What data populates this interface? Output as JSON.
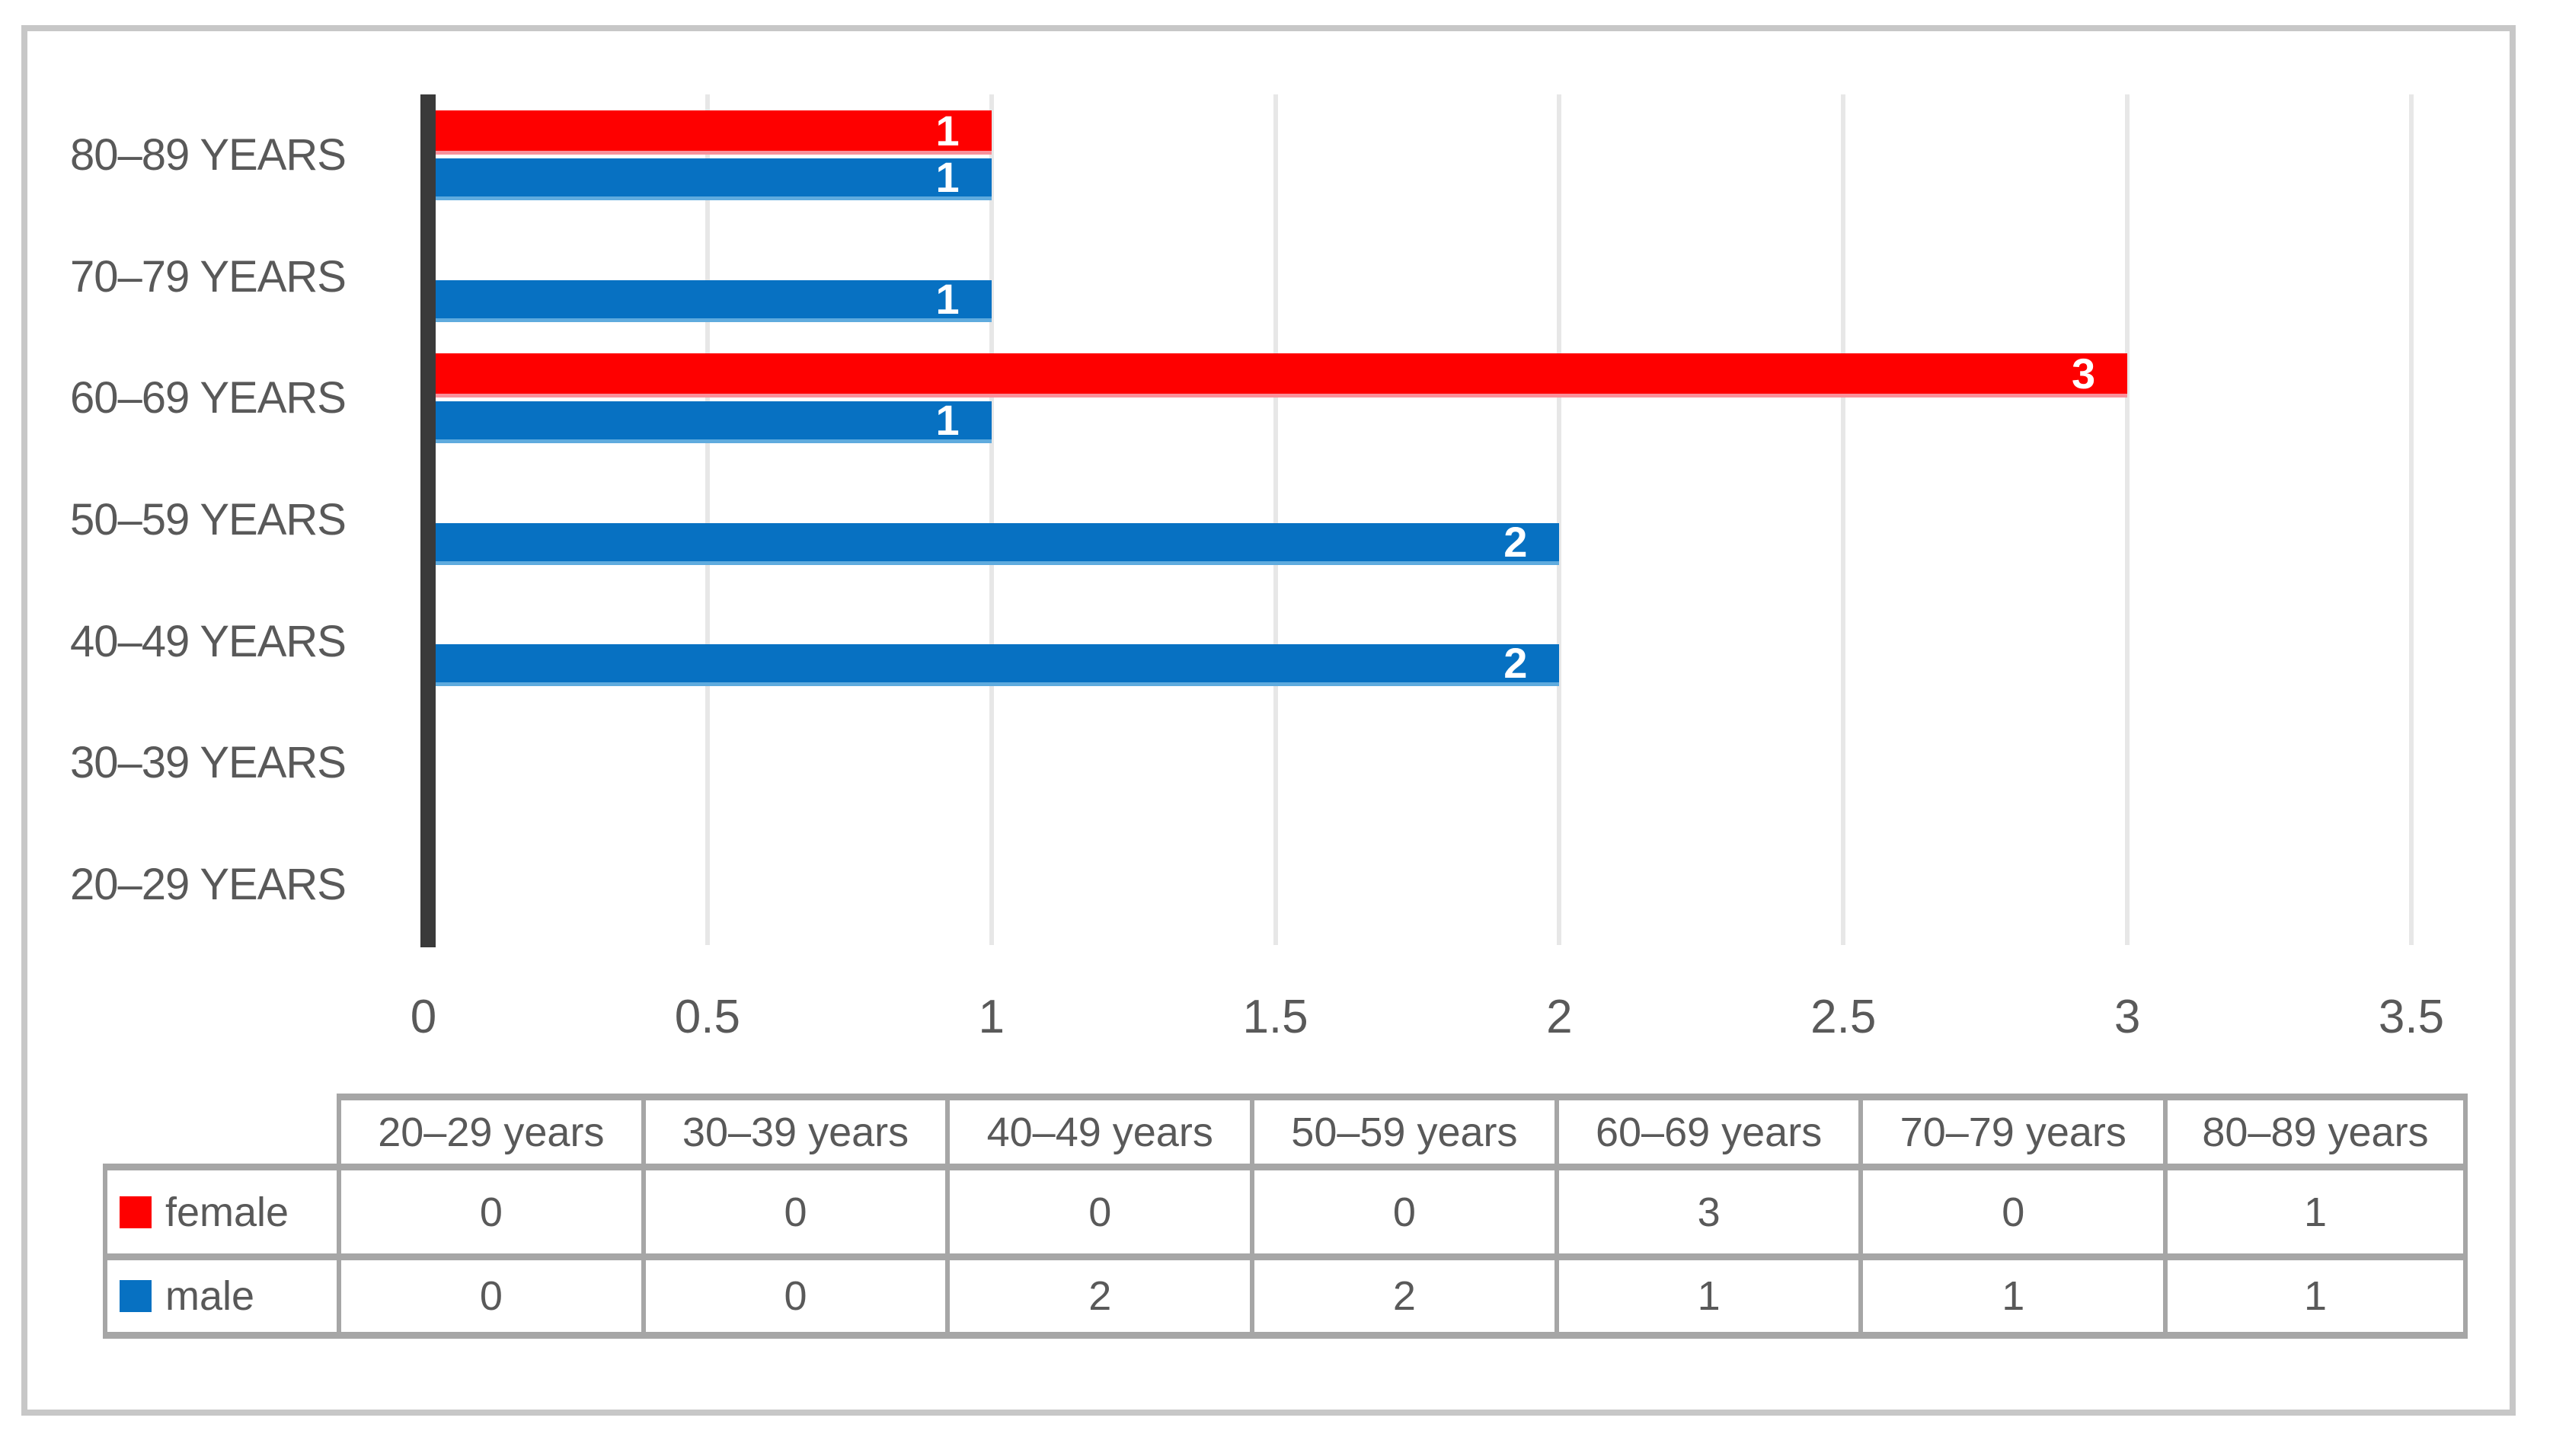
{
  "colors": {
    "female": "#fe0000",
    "female_edge": "#f9909b",
    "male": "#0771c2",
    "male_edge": "#5fabde",
    "axis_line": "#3a3a3a",
    "gridline": "#e7e7e7",
    "text_gray": "#595959",
    "bar_label": "#ffffff",
    "table_border": "#a6a6a6",
    "frame_border": "#c7c7c7"
  },
  "chart_data": {
    "type": "bar",
    "orientation": "horizontal",
    "title": "",
    "xlabel": "",
    "ylabel": "",
    "grid": true,
    "xlim": [
      0,
      3.5
    ],
    "x_ticks": [
      "0",
      "0.5",
      "1",
      "1.5",
      "2",
      "2.5",
      "3",
      "3.5"
    ],
    "x_tick_values": [
      0,
      0.5,
      1,
      1.5,
      2,
      2.5,
      3,
      3.5
    ],
    "categories": [
      "20–29 years",
      "30–39 years",
      "40–49 years",
      "50–59 years",
      "60–69 years",
      "70–79 years",
      "80–89 years"
    ],
    "plot_category_labels": [
      "80–89 YEARS",
      "70–79 YEARS",
      "60–69 YEARS",
      "50–59 YEARS",
      "40–49 YEARS",
      "30–39 YEARS",
      "20–29 YEARS"
    ],
    "series": [
      {
        "name": "female",
        "color": "#fe0000",
        "values": [
          0,
          0,
          0,
          0,
          3,
          0,
          1
        ]
      },
      {
        "name": "male",
        "color": "#0771c2",
        "values": [
          0,
          0,
          2,
          2,
          1,
          1,
          1
        ]
      }
    ],
    "value_labels": "shown in white inside bar end for non-zero values",
    "legend_position": "bottom-table"
  },
  "table": {
    "corner_label": "",
    "headers": [
      "20–29 years",
      "30–39 years",
      "40–49 years",
      "50–59 years",
      "60–69 years",
      "70–79 years",
      "80–89 years"
    ],
    "rows": [
      {
        "label": "female",
        "key_color": "#fe0000",
        "values": [
          0,
          0,
          0,
          0,
          3,
          0,
          1
        ]
      },
      {
        "label": "male",
        "key_color": "#0771c2",
        "values": [
          0,
          0,
          2,
          2,
          1,
          1,
          1
        ]
      }
    ]
  }
}
